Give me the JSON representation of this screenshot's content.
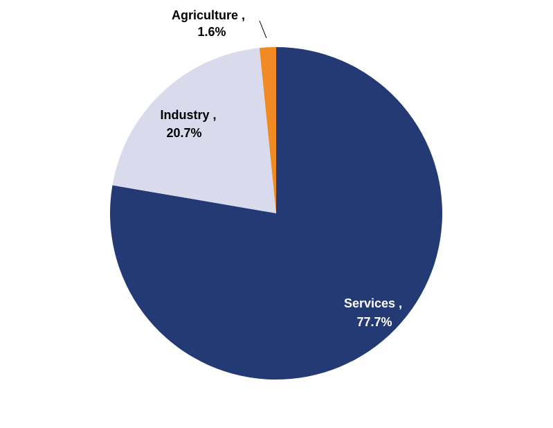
{
  "chart_data": {
    "type": "pie",
    "title": "",
    "slices": [
      {
        "name": "Services",
        "value": 77.7,
        "color": "#243a75",
        "label_line1": "Services ,",
        "label_line2": "77.7%",
        "label_color": "#ffffff"
      },
      {
        "name": "Industry",
        "value": 20.7,
        "color": "#d9dbec",
        "label_line1": "Industry ,",
        "label_line2": "20.7%",
        "label_color": "#000000"
      },
      {
        "name": "Agriculture",
        "value": 1.6,
        "color": "#f28a23",
        "label_line1": "Agriculture ,",
        "label_line2": "1.6%",
        "label_color": "#000000"
      }
    ],
    "start_angle": "12 o'clock",
    "direction": "clockwise",
    "legend": "none"
  }
}
